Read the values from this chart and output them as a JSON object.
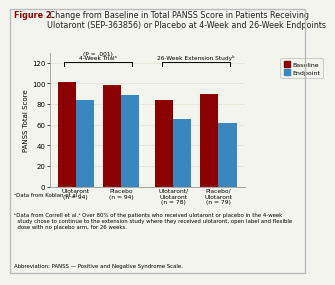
{
  "title_bold": "Figure 2.",
  "title_rest": " Change from Baseline in Total PANSS Score in Patients Receiving\nUlotaront (SEP-363856) or Placebo at 4-Week and 26-Week Endpoints",
  "ylabel": "PANSS Total Score",
  "yticks": [
    0,
    20,
    40,
    60,
    80,
    100,
    120
  ],
  "ylim": [
    0,
    130
  ],
  "groups": [
    "Ulotaront\n(n = 94)",
    "Placebo\n(n = 94)",
    "Ulotaront/\nUlotaront\n(n = 78)",
    "Placebo/\nUlotaront\n(n = 79)"
  ],
  "baseline_values": [
    101,
    99,
    84,
    90
  ],
  "endpoint_values": [
    84,
    89,
    66,
    62
  ],
  "baseline_color": "#8B0000",
  "endpoint_color": "#3A87C0",
  "bar_width": 0.38,
  "bracket1_label_line1": "4-Week Trialᵃ",
  "bracket1_label_line2": "(P = .001)",
  "bracket2_label": "26-Week Extension Studyᵇ",
  "legend_baseline": "Baseline",
  "legend_endpoint": "Endpoint",
  "footnote1": "ᵃData from Koblan et al.⁵",
  "footnote2": "ᵇData from Correll et al.⁵ Over 80% of the patients who received ulotaront or placebo in the 4-week\n  study chose to continue to the extension study where they received ulotaront, open label and flexible\n  dose with no placebo arm, for 26 weeks.",
  "footnote3": "Abbreviation: PANSS — Positive and Negative Syndrome Scale.",
  "bg_color": "#F4F4EE",
  "border_color": "#BBBBBB",
  "title_color": "#8B0000",
  "title_rest_color": "#222222"
}
